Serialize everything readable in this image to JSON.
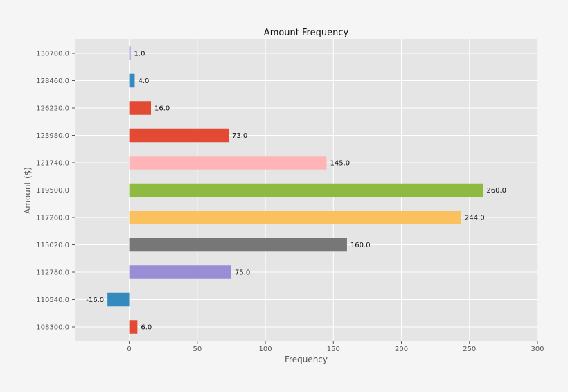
{
  "chart_data": {
    "type": "bar",
    "orientation": "horizontal",
    "title": "Amount Frequency",
    "xlabel": "Frequency",
    "ylabel": "Amount ($)",
    "xlim": [
      -40,
      300
    ],
    "x_ticks": [
      0,
      50,
      100,
      150,
      200,
      250,
      300
    ],
    "grid": true,
    "categories": [
      "108300.0",
      "110540.0",
      "112780.0",
      "115020.0",
      "117260.0",
      "119500.0",
      "121740.0",
      "123980.0",
      "126220.0",
      "128460.0",
      "130700.0"
    ],
    "values": [
      6.0,
      -16.0,
      75.0,
      160.0,
      244.0,
      260.0,
      145.0,
      73.0,
      16.0,
      4.0,
      1.0
    ],
    "value_labels": [
      "6.0",
      "-16.0",
      "75.0",
      "160.0",
      "244.0",
      "260.0",
      "145.0",
      "73.0",
      "16.0",
      "4.0",
      "1.0"
    ],
    "colors": [
      "#E24A33",
      "#348ABD",
      "#988ED5",
      "#777777",
      "#FBC15E",
      "#8EBA42",
      "#FFB5B8",
      "#E24A33",
      "#E24A33",
      "#348ABD",
      "#988ED5"
    ]
  }
}
